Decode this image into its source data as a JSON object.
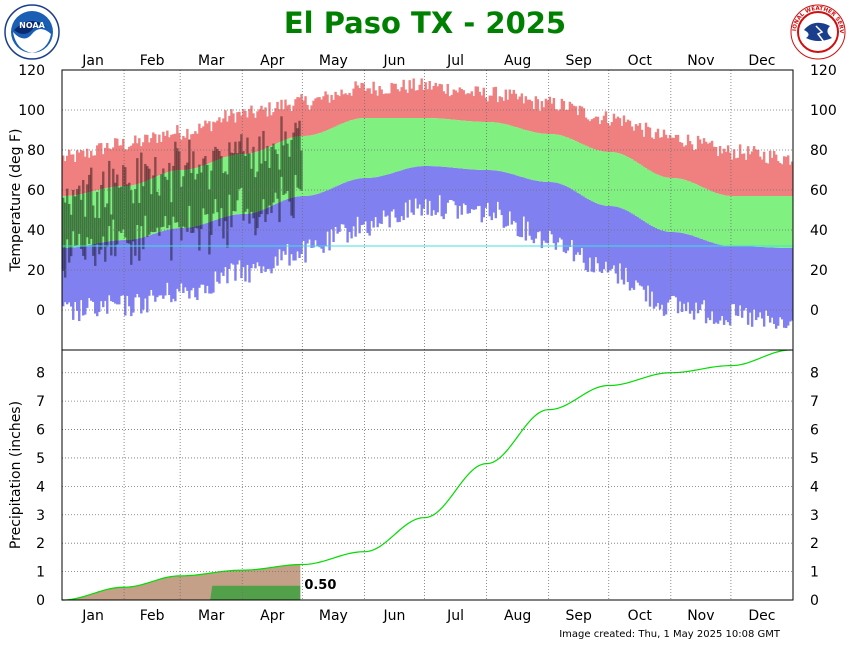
{
  "title": "El Paso TX - 2025",
  "footer": "Image created: Thu, 1 May 2025 10:08 GMT",
  "logos": {
    "left": "NOAA",
    "right": "NATIONAL WEATHER SERVICE"
  },
  "colors": {
    "record_range": "#f08080",
    "normal_range": "#80f080",
    "record_low": "#8080f0",
    "observed": "#000000",
    "normal_precip": "#00dd00",
    "observed_precip": "#b08060",
    "title": "#008000"
  },
  "chart_data": [
    {
      "type": "area",
      "name": "temperature",
      "ylabel": "Temperature (deg F)",
      "ylim": [
        -20,
        120
      ],
      "yticks": [
        0,
        20,
        40,
        60,
        80,
        100,
        120
      ],
      "months": [
        "Jan",
        "Feb",
        "Mar",
        "Apr",
        "May",
        "Jun",
        "Jul",
        "Aug",
        "Sep",
        "Oct",
        "Nov",
        "Dec"
      ],
      "grid": true,
      "freezing_line": 32,
      "normals": {
        "day_of_year": [
          1,
          32,
          60,
          91,
          121,
          152,
          182,
          213,
          244,
          274,
          305,
          335,
          365
        ],
        "normal_high": [
          57,
          62,
          70,
          78,
          87,
          96,
          96,
          94,
          88,
          79,
          66,
          57,
          57
        ],
        "normal_low": [
          31,
          35,
          41,
          48,
          57,
          66,
          72,
          70,
          64,
          52,
          39,
          32,
          31
        ],
        "record_high": [
          76,
          83,
          89,
          98,
          104,
          111,
          112,
          108,
          103,
          96,
          86,
          79,
          76
        ],
        "record_low": [
          5,
          8,
          15,
          25,
          35,
          48,
          58,
          55,
          42,
          25,
          8,
          3,
          -2
        ]
      },
      "observed_through_day": 120
    },
    {
      "type": "line",
      "name": "precipitation",
      "ylabel": "Precipitation (inches)",
      "ylim": [
        0,
        8.8
      ],
      "yticks": [
        0,
        1,
        2,
        3,
        4,
        5,
        6,
        7,
        8
      ],
      "months": [
        "Jan",
        "Feb",
        "Mar",
        "Apr",
        "May",
        "Jun",
        "Jul",
        "Aug",
        "Sep",
        "Oct",
        "Nov",
        "Dec"
      ],
      "grid": true,
      "normal_cumulative": {
        "day_of_year": [
          1,
          32,
          60,
          91,
          121,
          152,
          182,
          213,
          244,
          274,
          305,
          335,
          365
        ],
        "value": [
          0,
          0.45,
          0.85,
          1.05,
          1.25,
          1.7,
          2.9,
          4.8,
          6.7,
          7.55,
          8.0,
          8.25,
          8.8
        ]
      },
      "observed_cumulative": {
        "day_of_year": [
          1,
          75,
          76,
          120
        ],
        "value": [
          0,
          0,
          0.5,
          0.5
        ]
      },
      "observed_total_label": "0.50"
    }
  ]
}
